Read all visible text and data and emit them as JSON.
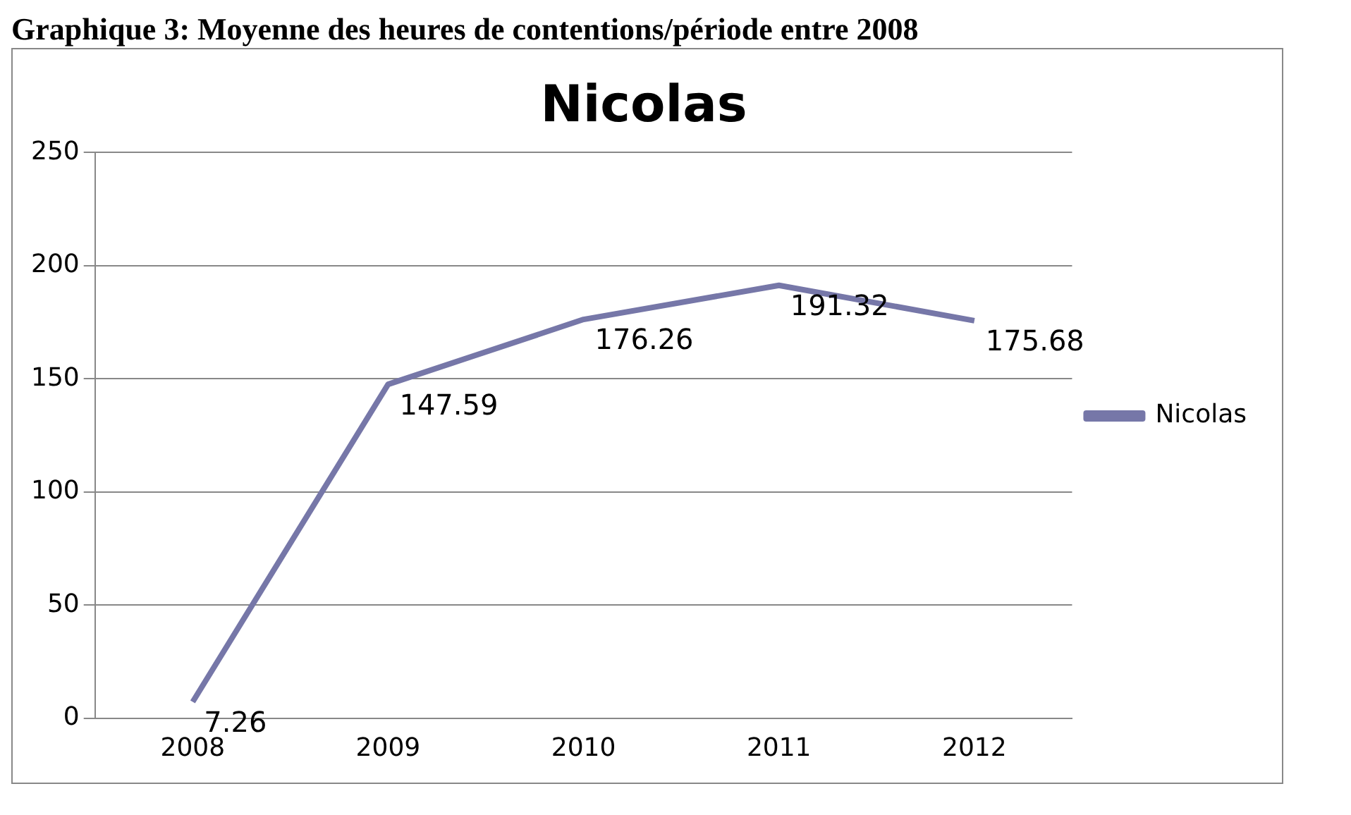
{
  "chart_data": {
    "type": "line",
    "title": "Nicolas",
    "annotations": [
      "Graphique 3: Moyenne des heures de contentions/période entre 2008"
    ],
    "categories": [
      "2008",
      "2009",
      "2010",
      "2011",
      "2012"
    ],
    "series": [
      {
        "name": "Nicolas",
        "color": "#7677a8",
        "values": [
          7.26,
          147.59,
          176.26,
          191.32,
          175.68
        ]
      }
    ],
    "ylim": [
      0,
      250
    ],
    "yticks": [
      0,
      50,
      100,
      150,
      200,
      250
    ],
    "grid": "y",
    "legend": "right",
    "marker": "none",
    "line_style": "solid",
    "data_labels": true
  }
}
